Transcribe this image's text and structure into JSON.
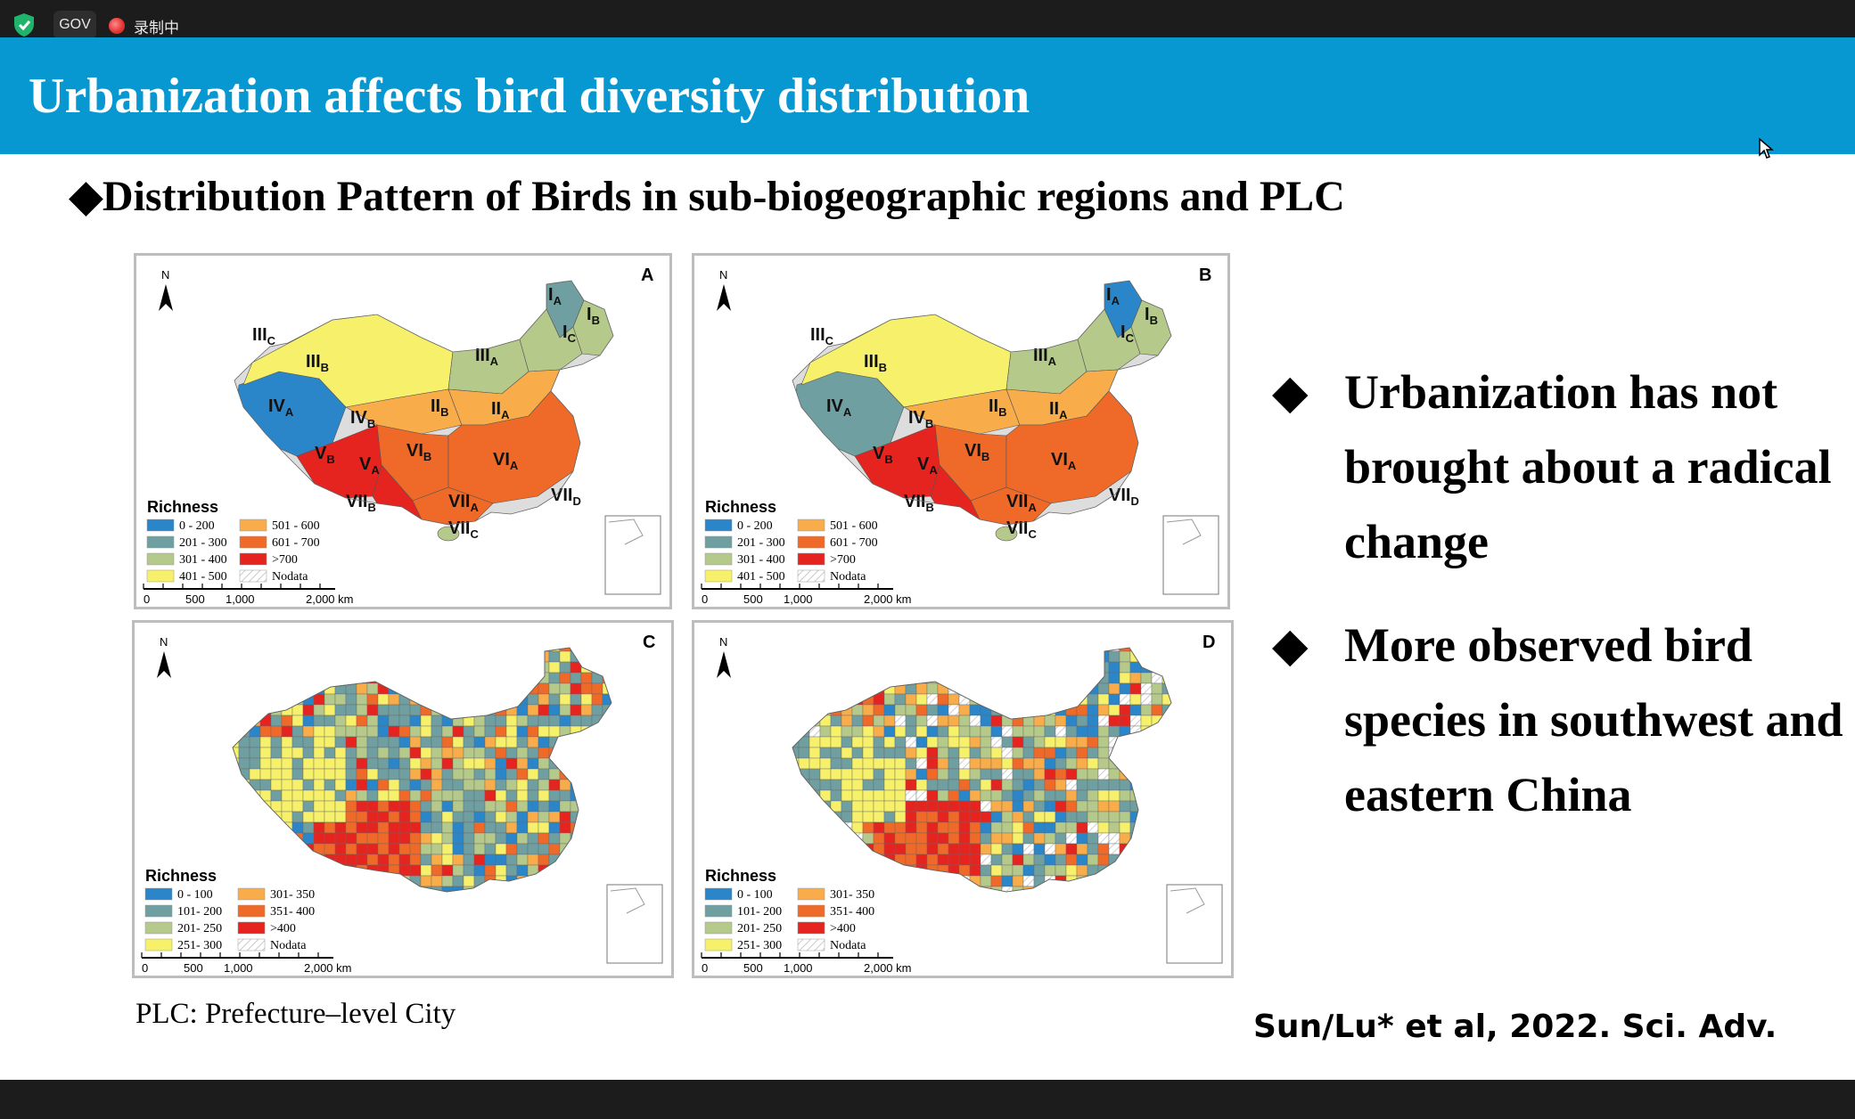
{
  "toolbar": {
    "gov_label": "GOV",
    "recording_label": "录制中"
  },
  "slide": {
    "title": "Urbanization affects bird diversity distribution",
    "subtitle": "Distribution Pattern of Birds in sub-biogeographic regions and PLC",
    "bullet_marker": "◆",
    "bullets": [
      "Urbanization has not brought about a radical change",
      "More observed bird species in southwest and eastern China"
    ],
    "plc_note": "PLC: Prefecture–level City",
    "citation": "Sun/Lu* et al, 2022. Sci. Adv."
  },
  "maps": [
    {
      "letter": "A",
      "legend_title": "Richness",
      "legend": [
        {
          "label": "0 - 200",
          "color": "#2a86c8"
        },
        {
          "label": "201 - 300",
          "color": "#6f9fa0"
        },
        {
          "label": "301 - 400",
          "color": "#b5c98a"
        },
        {
          "label": "401 - 500",
          "color": "#f6f06a"
        },
        {
          "label": "501 - 600",
          "color": "#f8ad4a"
        },
        {
          "label": "601 - 700",
          "color": "#ef6a28"
        },
        {
          "label": ">700",
          "color": "#e52420"
        },
        {
          "label": "Nodata",
          "color": "hatch"
        }
      ],
      "regions": [
        "IA",
        "IB",
        "IC",
        "IIIC",
        "IIIB",
        "IIIA",
        "IVA",
        "IVB",
        "IIB",
        "IIA",
        "VB",
        "VA",
        "VIB",
        "VIA",
        "VIIB",
        "VIIA",
        "VIID",
        "VIIC"
      ]
    },
    {
      "letter": "B",
      "legend_title": "Richness",
      "legend": [
        {
          "label": "0 - 200",
          "color": "#2a86c8"
        },
        {
          "label": "201 - 300",
          "color": "#6f9fa0"
        },
        {
          "label": "301 - 400",
          "color": "#b5c98a"
        },
        {
          "label": "401 - 500",
          "color": "#f6f06a"
        },
        {
          "label": "501 - 600",
          "color": "#f8ad4a"
        },
        {
          "label": "601 - 700",
          "color": "#ef6a28"
        },
        {
          "label": ">700",
          "color": "#e52420"
        },
        {
          "label": "Nodata",
          "color": "hatch"
        }
      ],
      "regions": [
        "IA",
        "IB",
        "IC",
        "IIIC",
        "IIIB",
        "IIIA",
        "IVA",
        "IVB",
        "IIB",
        "IIA",
        "VB",
        "VA",
        "VIB",
        "VIA",
        "VIIB",
        "VIIA",
        "VIID",
        "VIIC"
      ]
    },
    {
      "letter": "C",
      "legend_title": "Richness",
      "legend": [
        {
          "label": "0 - 100",
          "color": "#2a86c8"
        },
        {
          "label": "101- 200",
          "color": "#6f9fa0"
        },
        {
          "label": "201- 250",
          "color": "#b5c98a"
        },
        {
          "label": "251- 300",
          "color": "#f6f06a"
        },
        {
          "label": "301- 350",
          "color": "#f8ad4a"
        },
        {
          "label": "351- 400",
          "color": "#ef6a28"
        },
        {
          "label": ">400",
          "color": "#e52420"
        },
        {
          "label": "Nodata",
          "color": "hatch"
        }
      ]
    },
    {
      "letter": "D",
      "legend_title": "Richness",
      "legend": [
        {
          "label": "0 - 100",
          "color": "#2a86c8"
        },
        {
          "label": "101- 200",
          "color": "#6f9fa0"
        },
        {
          "label": "201- 250",
          "color": "#b5c98a"
        },
        {
          "label": "251- 300",
          "color": "#f6f06a"
        },
        {
          "label": "301- 350",
          "color": "#f8ad4a"
        },
        {
          "label": "351- 400",
          "color": "#ef6a28"
        },
        {
          "label": ">400",
          "color": "#e52420"
        },
        {
          "label": "Nodata",
          "color": "hatch"
        }
      ]
    }
  ],
  "map_common": {
    "north_label": "N",
    "scale_ticks": [
      "0",
      "500",
      "1,000",
      "2,000 km"
    ]
  },
  "colors": {
    "title_band": "#0898d1",
    "shield": "#1fb36b"
  },
  "icons": {
    "shield": "shield-check-icon",
    "recording": "recording-dot-icon",
    "cursor": "mouse-cursor-icon",
    "north": "north-arrow-icon"
  }
}
